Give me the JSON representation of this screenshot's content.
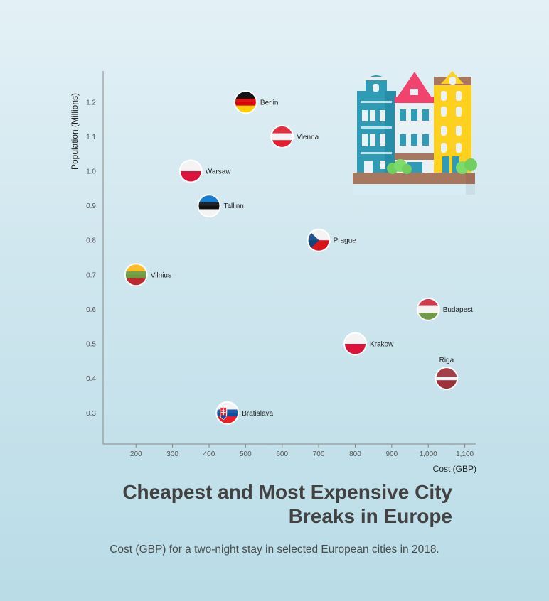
{
  "chart_data": {
    "type": "scatter",
    "title": "Cheapest and Most Expensive City Breaks in Europe",
    "subtitle": "Cost (GBP) for a two-night stay in selected European cities in 2018.",
    "xlabel": "Cost (GBP)",
    "ylabel": "Population (Millions)",
    "xlim": [
      110,
      1130
    ],
    "ylim": [
      0.21,
      1.29
    ],
    "xticks": [
      200,
      300,
      400,
      500,
      600,
      700,
      800,
      900,
      1000,
      1100
    ],
    "xtick_labels": [
      "200",
      "300",
      "400",
      "500",
      "600",
      "700",
      "800",
      "900",
      "1,000",
      "1,100"
    ],
    "yticks": [
      0.3,
      0.4,
      0.5,
      0.6,
      0.7,
      0.8,
      0.9,
      1.0,
      1.1,
      1.2
    ],
    "ytick_labels": [
      "0.3",
      "0.4",
      "0.5",
      "0.6",
      "0.7",
      "0.8",
      "0.9",
      "1.0",
      "1.1",
      "1.2"
    ],
    "grid": false,
    "legend": "none",
    "points": [
      {
        "label": "Berlin",
        "x": 500,
        "y": 1.2,
        "flag": "germany",
        "label_pos": "right"
      },
      {
        "label": "Vienna",
        "x": 600,
        "y": 1.1,
        "flag": "austria",
        "label_pos": "right"
      },
      {
        "label": "Warsaw",
        "x": 350,
        "y": 1.0,
        "flag": "poland",
        "label_pos": "right"
      },
      {
        "label": "Tallinn",
        "x": 400,
        "y": 0.9,
        "flag": "estonia",
        "label_pos": "right"
      },
      {
        "label": "Prague",
        "x": 700,
        "y": 0.8,
        "flag": "czech-republic",
        "label_pos": "right"
      },
      {
        "label": "Vilnius",
        "x": 200,
        "y": 0.7,
        "flag": "lithuania",
        "label_pos": "right"
      },
      {
        "label": "Budapest",
        "x": 1000,
        "y": 0.6,
        "flag": "hungary",
        "label_pos": "right"
      },
      {
        "label": "Krakow",
        "x": 800,
        "y": 0.5,
        "flag": "poland",
        "label_pos": "right"
      },
      {
        "label": "Riga",
        "x": 1050,
        "y": 0.4,
        "flag": "latvia",
        "label_pos": "top"
      },
      {
        "label": "Bratislava",
        "x": 450,
        "y": 0.3,
        "flag": "slovakia",
        "label_pos": "right"
      }
    ],
    "colors": {
      "axis": "#888888",
      "tick_text": "#555555",
      "point_label_text": "#222222",
      "marker_border": "#ffffff"
    }
  },
  "decoration": {
    "icon": "colorful-houses-illustration"
  }
}
